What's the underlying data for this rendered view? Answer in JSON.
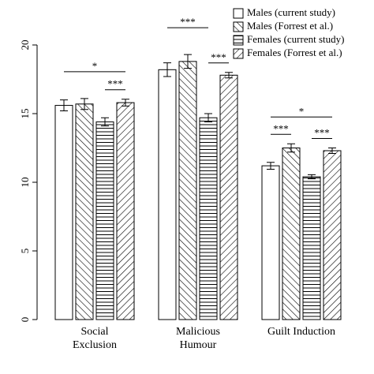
{
  "chart_data": {
    "type": "bar",
    "categories": [
      "Social Exclusion",
      "Malicious Humour",
      "Guilt Induction"
    ],
    "series": [
      {
        "name": "Males (current study)",
        "color": "#000000",
        "pattern": "none",
        "values": [
          15.6,
          18.2,
          11.2
        ],
        "errors": [
          0.4,
          0.5,
          0.25
        ]
      },
      {
        "name": "Males (Forrest et al.)",
        "color": "#000000",
        "pattern": "backslash",
        "values": [
          15.7,
          18.8,
          12.5
        ],
        "errors": [
          0.4,
          0.5,
          0.3
        ]
      },
      {
        "name": "Females (current study)",
        "color": "#000000",
        "pattern": "horizontal",
        "values": [
          14.4,
          14.7,
          10.4
        ],
        "errors": [
          0.3,
          0.3,
          0.15
        ]
      },
      {
        "name": "Females (Forrest et al.)",
        "color": "#000000",
        "pattern": "slash",
        "values": [
          15.8,
          17.8,
          12.3
        ],
        "errors": [
          0.25,
          0.2,
          0.2
        ]
      }
    ],
    "ylim": [
      0,
      20
    ],
    "yticks": [
      0,
      5,
      10,
      15,
      20
    ],
    "legend": "top-right",
    "annotations": [
      {
        "text": "*",
        "category": 0,
        "from": 0,
        "to": 3
      },
      {
        "text": "***",
        "category": 0,
        "from": 2,
        "to": 3
      },
      {
        "text": "***",
        "category": 1,
        "from": 0,
        "to": 2
      },
      {
        "text": "***",
        "category": 1,
        "from": 2,
        "to": 3
      },
      {
        "text": "*",
        "category": 2,
        "from": 0,
        "to": 3
      },
      {
        "text": "***",
        "category": 2,
        "from": 0,
        "to": 1
      },
      {
        "text": "***",
        "category": 2,
        "from": 2,
        "to": 3
      }
    ]
  }
}
